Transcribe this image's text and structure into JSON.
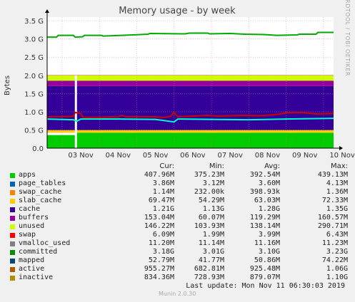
{
  "chart_data": {
    "type": "area",
    "title": "Memory usage - by week",
    "ylabel": "Bytes",
    "side_label": "RRDTOOL / TOBI OETIKER",
    "ylim": [
      0,
      3.6
    ],
    "unit_scale": "G",
    "y_ticks": [
      "0.0",
      "0.5 G",
      "1.0 G",
      "1.5 G",
      "2.0 G",
      "2.5 G",
      "3.0 G",
      "3.5 G"
    ],
    "y_tick_values": [
      0,
      0.5,
      1.0,
      1.5,
      2.0,
      2.5,
      3.0,
      3.5
    ],
    "x_ticks": [
      "03 Nov",
      "04 Nov",
      "05 Nov",
      "06 Nov",
      "07 Nov",
      "08 Nov",
      "09 Nov",
      "10 Nov"
    ],
    "x_range_days": [
      2.6,
      10.27
    ],
    "grid": true,
    "stacked_series": [
      {
        "name": "apps",
        "color": "#00cc00",
        "value_g": 0.4
      },
      {
        "name": "page_tables",
        "color": "#0066b3",
        "value_g": 0.004
      },
      {
        "name": "swap_cache",
        "color": "#ff8000",
        "value_g": 0.001
      },
      {
        "name": "slab_cache",
        "color": "#ffcc00",
        "value_g": 0.07
      },
      {
        "name": "cache",
        "color": "#330099",
        "value_g": 1.21
      },
      {
        "name": "buffers",
        "color": "#990099",
        "value_g": 0.15
      },
      {
        "name": "unused",
        "color": "#ccff00",
        "value_g": 0.146
      },
      {
        "name": "swap",
        "color": "#ff0000",
        "value_g": 0.006
      }
    ],
    "line_series": [
      {
        "name": "committed",
        "color": "#00aa00",
        "points": [
          [
            2.6,
            3.05
          ],
          [
            2.85,
            3.05
          ],
          [
            2.9,
            3.1
          ],
          [
            3.3,
            3.1
          ],
          [
            3.35,
            3.05
          ],
          [
            3.55,
            3.06
          ],
          [
            3.6,
            3.1
          ],
          [
            4.05,
            3.1
          ],
          [
            4.1,
            3.08
          ],
          [
            4.6,
            3.1
          ],
          [
            4.9,
            3.11
          ],
          [
            5.3,
            3.13
          ],
          [
            5.35,
            3.15
          ],
          [
            6.3,
            3.14
          ],
          [
            6.4,
            3.16
          ],
          [
            6.9,
            3.16
          ],
          [
            6.95,
            3.14
          ],
          [
            7.5,
            3.15
          ],
          [
            7.9,
            3.13
          ],
          [
            8.4,
            3.12
          ],
          [
            8.75,
            3.1
          ],
          [
            9.3,
            3.11
          ],
          [
            9.35,
            3.13
          ],
          [
            9.8,
            3.13
          ],
          [
            9.85,
            3.18
          ],
          [
            10.27,
            3.18
          ]
        ]
      },
      {
        "name": "active",
        "color": "#cc0000",
        "points": [
          [
            2.6,
            0.86
          ],
          [
            3.3,
            0.87
          ],
          [
            3.35,
            0.98
          ],
          [
            3.5,
            0.95
          ],
          [
            3.55,
            0.85
          ],
          [
            4.0,
            0.85
          ],
          [
            4.5,
            0.86
          ],
          [
            4.6,
            0.9
          ],
          [
            4.7,
            0.86
          ],
          [
            5.5,
            0.86
          ],
          [
            5.7,
            0.84
          ],
          [
            5.9,
            0.87
          ],
          [
            6.0,
            0.98
          ],
          [
            6.1,
            0.86
          ],
          [
            6.5,
            0.88
          ],
          [
            6.9,
            0.9
          ],
          [
            7.2,
            0.88
          ],
          [
            7.8,
            0.9
          ],
          [
            8.3,
            0.89
          ],
          [
            8.8,
            0.93
          ],
          [
            9.0,
            0.97
          ],
          [
            9.4,
            0.98
          ],
          [
            9.8,
            0.94
          ],
          [
            10.27,
            0.95
          ]
        ]
      },
      {
        "name": "inactive",
        "color": "#00ffcc",
        "points": [
          [
            2.6,
            0.8
          ],
          [
            3.3,
            0.78
          ],
          [
            3.4,
            0.74
          ],
          [
            3.5,
            0.8
          ],
          [
            4.5,
            0.8
          ],
          [
            5.5,
            0.79
          ],
          [
            6.0,
            0.72
          ],
          [
            6.1,
            0.8
          ],
          [
            7.0,
            0.79
          ],
          [
            8.0,
            0.78
          ],
          [
            9.0,
            0.8
          ],
          [
            10.27,
            0.82
          ]
        ]
      }
    ],
    "gap_day": 3.37,
    "apps_band_top": [
      [
        2.6,
        0.36
      ],
      [
        3.37,
        0.36
      ],
      [
        3.4,
        0.42
      ],
      [
        10.27,
        0.42
      ]
    ]
  },
  "legend": {
    "headers": [
      "Cur:",
      "Min:",
      "Avg:",
      "Max:"
    ],
    "rows": [
      {
        "name": "apps",
        "color": "#00cc00",
        "cur": "407.96M",
        "min": "375.23M",
        "avg": "392.54M",
        "max": "439.13M"
      },
      {
        "name": "page_tables",
        "color": "#0066b3",
        "cur": "3.86M",
        "min": "3.12M",
        "avg": "3.60M",
        "max": "4.13M"
      },
      {
        "name": "swap_cache",
        "color": "#ff8000",
        "cur": "1.14M",
        "min": "232.00k",
        "avg": "398.93k",
        "max": "1.36M"
      },
      {
        "name": "slab_cache",
        "color": "#ffcc00",
        "cur": "69.47M",
        "min": "54.29M",
        "avg": "63.03M",
        "max": "72.33M"
      },
      {
        "name": "cache",
        "color": "#330099",
        "cur": "1.21G",
        "min": "1.13G",
        "avg": "1.28G",
        "max": "1.35G"
      },
      {
        "name": "buffers",
        "color": "#990099",
        "cur": "153.04M",
        "min": "60.07M",
        "avg": "119.29M",
        "max": "160.57M"
      },
      {
        "name": "unused",
        "color": "#ccff00",
        "cur": "146.22M",
        "min": "103.93M",
        "avg": "138.14M",
        "max": "290.71M"
      },
      {
        "name": "swap",
        "color": "#ff0000",
        "cur": "6.09M",
        "min": "1.99M",
        "avg": "3.99M",
        "max": "6.43M"
      },
      {
        "name": "vmalloc_used",
        "color": "#808080",
        "cur": "11.20M",
        "min": "11.14M",
        "avg": "11.16M",
        "max": "11.23M"
      },
      {
        "name": "committed",
        "color": "#008f00",
        "cur": "3.18G",
        "min": "3.01G",
        "avg": "3.10G",
        "max": "3.23G"
      },
      {
        "name": "mapped",
        "color": "#00487d",
        "cur": "52.79M",
        "min": "41.77M",
        "avg": "50.86M",
        "max": "74.22M"
      },
      {
        "name": "active",
        "color": "#b35a00",
        "cur": "955.27M",
        "min": "682.81M",
        "avg": "925.48M",
        "max": "1.06G"
      },
      {
        "name": "inactive",
        "color": "#b38f00",
        "cur": "834.36M",
        "min": "728.93M",
        "avg": "879.07M",
        "max": "1.10G"
      }
    ]
  },
  "footer": {
    "last_update": "Last update:  Mon Nov 11 06:30:03 2019",
    "munin": "Munin 2.0.30"
  }
}
